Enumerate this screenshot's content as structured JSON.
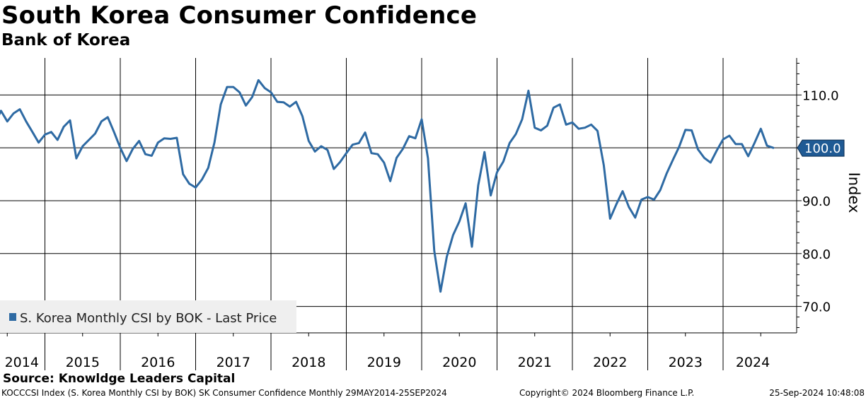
{
  "chart_data": {
    "type": "line",
    "title": "South Korea Consumer Confidence",
    "subtitle": "Bank of Korea",
    "ylabel": "Index",
    "ylim": [
      65,
      117
    ],
    "yticks": [
      70,
      80,
      90,
      100,
      110
    ],
    "ytick_labels": [
      "70.0",
      "80.0",
      "90.0",
      "100.0",
      "110.0"
    ],
    "year_labels": [
      "2014",
      "2015",
      "2016",
      "2017",
      "2018",
      "2019",
      "2020",
      "2021",
      "2022",
      "2023",
      "2024"
    ],
    "x_start": "2014-05",
    "x_end": "2024-09",
    "reference_line": 100,
    "last_value": 100.0,
    "last_value_label": "100.0",
    "legend_label": "S. Korea Monthly CSI by BOK - Last Price",
    "line_color": "#2e6aa3",
    "series": [
      {
        "name": "S. Korea Monthly CSI by BOK - Last Price",
        "start": "2014-05",
        "values": [
          104.5,
          107,
          105,
          106.5,
          107.3,
          105,
          103,
          101,
          102.5,
          103,
          101.5,
          104,
          105.2,
          98,
          100.3,
          101.5,
          102.7,
          105,
          105.8,
          103,
          100,
          97.5,
          99.8,
          101.3,
          98.8,
          98.5,
          101,
          101.8,
          101.7,
          101.9,
          95,
          93.2,
          92.5,
          94,
          96.2,
          101,
          108.2,
          111.5,
          111.5,
          110.5,
          108,
          109.6,
          112.8,
          111.3,
          110.5,
          108.7,
          108.6,
          107.8,
          108.7,
          106,
          101.3,
          99.3,
          100.3,
          99.6,
          96,
          97.3,
          99,
          100.6,
          100.9,
          102.9,
          99,
          98.8,
          97.2,
          93.7,
          98.1,
          99.8,
          102.2,
          101.8,
          105.4,
          98,
          80.5,
          72.8,
          79.4,
          83.5,
          86.1,
          89.5,
          81.3,
          92.9,
          99.2,
          91,
          95.4,
          97.4,
          100.9,
          102.6,
          105.4,
          110.8,
          103.8,
          103.3,
          104.2,
          107.6,
          108.2,
          104.4,
          104.8,
          103.6,
          103.8,
          104.4,
          103.2,
          96.7,
          86.6,
          89.3,
          91.8,
          88.8,
          86.8,
          90.2,
          90.7,
          90.2,
          92.0,
          95.1,
          97.7,
          100.2,
          103.4,
          103.3,
          99.7,
          98.1,
          97.2,
          99.5,
          101.6,
          102.3,
          100.7,
          100.7,
          98.4,
          100.9,
          103.6,
          100.4,
          100.0
        ]
      }
    ]
  },
  "source": "Source: Knowldge Leaders Capital",
  "footer": {
    "left": "KOCCCSI Index (S. Korea Monthly CSI by BOK) SK Consumer Confidence  Monthly 29MAY2014-25SEP2024",
    "middle": "Copyright© 2024 Bloomberg Finance L.P.",
    "right": "25-Sep-2024 10:48:08"
  }
}
